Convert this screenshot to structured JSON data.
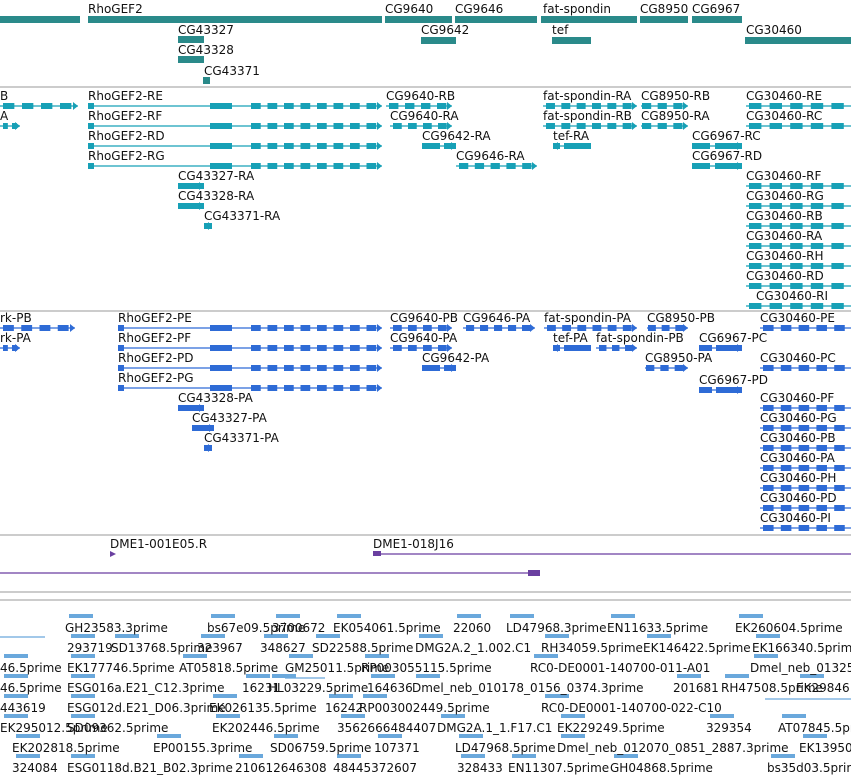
{
  "colors": {
    "genes": "#2a8a8a",
    "transcripts": "#17a0b6",
    "proteins": "#2e6bd6",
    "clones": "#6a3fa0",
    "ests": "#6aa8dc",
    "divider": "#9a9a9a"
  },
  "tracks": {
    "genes": [
      {
        "label": "RhoGEF2"
      },
      {
        "label": "CG9640"
      },
      {
        "label": "CG9646"
      },
      {
        "label": "fat-spondin"
      },
      {
        "label": "CG8950"
      },
      {
        "label": "CG6967"
      },
      {
        "label": "CG9642"
      },
      {
        "label": "tef"
      },
      {
        "label": "CG30460"
      },
      {
        "label": "CG43327"
      },
      {
        "label": "CG43328"
      },
      {
        "label": "CG43371"
      }
    ],
    "transcripts": [
      {
        "label": "B"
      },
      {
        "label": "A"
      },
      {
        "label": "RhoGEF2-RE"
      },
      {
        "label": "RhoGEF2-RF"
      },
      {
        "label": "RhoGEF2-RD"
      },
      {
        "label": "RhoGEF2-RG"
      },
      {
        "label": "CG9640-RB"
      },
      {
        "label": "CG9640-RA"
      },
      {
        "label": "CG9642-RA"
      },
      {
        "label": "CG9646-RA"
      },
      {
        "label": "fat-spondin-RA"
      },
      {
        "label": "fat-spondin-RB"
      },
      {
        "label": "tef-RA"
      },
      {
        "label": "CG8950-RB"
      },
      {
        "label": "CG8950-RA"
      },
      {
        "label": "CG6967-RC"
      },
      {
        "label": "CG6967-RD"
      },
      {
        "label": "CG43327-RA"
      },
      {
        "label": "CG43328-RA"
      },
      {
        "label": "CG43371-RA"
      },
      {
        "label": "CG30460-RE"
      },
      {
        "label": "CG30460-RC"
      },
      {
        "label": "CG30460-RF"
      },
      {
        "label": "CG30460-RG"
      },
      {
        "label": "CG30460-RB"
      },
      {
        "label": "CG30460-RA"
      },
      {
        "label": "CG30460-RH"
      },
      {
        "label": "CG30460-RD"
      },
      {
        "label": "CG30460-RI"
      }
    ],
    "proteins": [
      {
        "label": "rk-PB"
      },
      {
        "label": "rk-PA"
      },
      {
        "label": "RhoGEF2-PE"
      },
      {
        "label": "RhoGEF2-PF"
      },
      {
        "label": "RhoGEF2-PD"
      },
      {
        "label": "RhoGEF2-PG"
      },
      {
        "label": "CG9640-PB"
      },
      {
        "label": "CG9646-PA"
      },
      {
        "label": "fat-spondin-PA"
      },
      {
        "label": "CG8950-PB"
      },
      {
        "label": "CG30460-PE"
      },
      {
        "label": "CG9640-PA"
      },
      {
        "label": "tef-PA"
      },
      {
        "label": "fat-spondin-PB"
      },
      {
        "label": "CG6967-PC"
      },
      {
        "label": "CG9642-PA"
      },
      {
        "label": "CG8950-PA"
      },
      {
        "label": "CG30460-PC"
      },
      {
        "label": "CG6967-PD"
      },
      {
        "label": "CG43328-PA"
      },
      {
        "label": "CG43327-PA"
      },
      {
        "label": "CG43371-PA"
      },
      {
        "label": "CG30460-PF"
      },
      {
        "label": "CG30460-PG"
      },
      {
        "label": "CG30460-PB"
      },
      {
        "label": "CG30460-PA"
      },
      {
        "label": "CG30460-PH"
      },
      {
        "label": "CG30460-PD"
      },
      {
        "label": "CG30460-PI"
      }
    ],
    "clones": [
      {
        "label": "DME1-001E05.R"
      },
      {
        "label": "DME1-018J16"
      }
    ],
    "ests": [
      "GH23583.3prime",
      "bs67e09.5prime",
      "3700672",
      "EK054061.5prime",
      "22060",
      "LD47968.3prime",
      "EN11633.5prime",
      "EK260604.5prime",
      "293719",
      "SD13768.5prime",
      "323967",
      "348627",
      "SD22588.5prime",
      "DMG2A.2_1.002.C1",
      "RH34059.5prime",
      "EK146422.5prime",
      "EK166340.5prime",
      "46.5prime",
      "EK177746.5prime",
      "AT05818.5prime",
      "GM25011.5prime",
      "RP003055115.5prime",
      "RC0-DE0001-140700-011-A01",
      "Dmel_neb_01325",
      "46.5prime",
      "ESG016a.E21_C12.3prime",
      "16231",
      "HL03229.5prime",
      "164636",
      "Dmel_neb_010178_0156_0374.3prime",
      "201681",
      "RH47508.5prime",
      "EK29846",
      "443619",
      "ESG012d.E21_D06.3prime",
      "EK026135.5prime",
      "16242",
      "RP003002449.5prime",
      "RC0-DE0001-140700-022-C10",
      "EK295012.5prime",
      "SD09362.5prime",
      "EK202446.5prime",
      "3562666484407",
      "DMG2A.1_1.F17.C1",
      "EK229249.5prime",
      "329354",
      "AT07845.5prime",
      "EK202818.5prime",
      "EP00155.3prime",
      "SD06759.5prime",
      "107371",
      "LD47968.5prime",
      "Dmel_neb_012070_0851_2887.3prime",
      "EK13950",
      "324084",
      "ESG0118d.B21_B02.3prime",
      "210612646308",
      "48445372607",
      "328433",
      "EN11307.5prime",
      "GH04868.5prime",
      "bs35d03.5prime"
    ]
  }
}
